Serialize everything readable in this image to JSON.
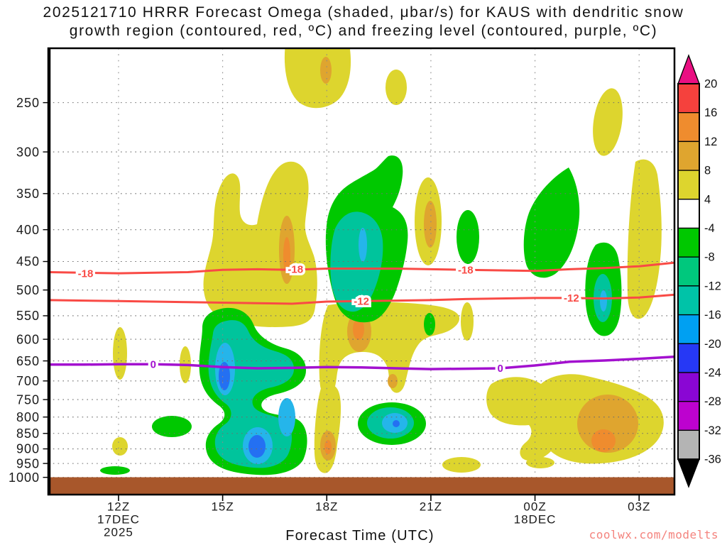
{
  "page": {
    "background": "#ffffff"
  },
  "title": {
    "line1": "2025121710 HRRR Forecast Omega (shaded, μbar/s) for KAUS with dendritic snow",
    "line2": "growth region (contoured, red, ºC) and freezing level (contoured, purple, ºC)"
  },
  "watermark": {
    "text": "coolwx.com/modelts",
    "color": "#f4837d"
  },
  "chart_data": {
    "type": "heatmap",
    "subtype": "time-height filled-contour cross section",
    "title": "2025121710 HRRR Forecast Omega (shaded, μbar/s) for KAUS with dendritic snow growth region (contoured, red, ºC) and freezing level (contoured, purple, ºC)",
    "model_run": "2025121710",
    "station": "KAUS",
    "shaded_variable": "omega (μbar/s)",
    "grid": "dotted",
    "x_axis": {
      "label": "Forecast Time (UTC)",
      "range_hours_after_10Z": [
        0,
        18
      ],
      "ticks": [
        {
          "label": "12Z",
          "t": 2,
          "sub": [
            "17DEC",
            "2025"
          ]
        },
        {
          "label": "15Z",
          "t": 5,
          "sub": []
        },
        {
          "label": "18Z",
          "t": 8,
          "sub": []
        },
        {
          "label": "21Z",
          "t": 11,
          "sub": []
        },
        {
          "label": "00Z",
          "t": 14,
          "sub": [
            "18DEC"
          ]
        },
        {
          "label": "03Z",
          "t": 17,
          "sub": []
        }
      ]
    },
    "y_axis": {
      "units": "hPa",
      "scale": "log",
      "ticks": [
        250,
        300,
        350,
        400,
        450,
        500,
        550,
        600,
        650,
        700,
        750,
        800,
        850,
        900,
        950,
        1000
      ],
      "top_hPa": 205,
      "bottom_hPa": 1065
    },
    "colorbar": {
      "tick_labels": [
        "20",
        "16",
        "12",
        "8",
        "4",
        "-4",
        "-8",
        "-12",
        "-16",
        "-20",
        "-24",
        "-28",
        "-32",
        "-36"
      ],
      "segments": [
        {
          "range": "16..20",
          "color": "#f5413d"
        },
        {
          "range": "12..16",
          "color": "#ef8c2e"
        },
        {
          "range": "8..12",
          "color": "#dfa52f"
        },
        {
          "range": "4..8",
          "color": "#ddd52e"
        },
        {
          "range": "-4..4",
          "color": "#ffffff"
        },
        {
          "range": "-8..-4",
          "color": "#00c800"
        },
        {
          "range": "-12..-8",
          "color": "#00c87d"
        },
        {
          "range": "-16..-12",
          "color": "#00c3a8"
        },
        {
          "range": "-20..-16",
          "color": "#00a0f2"
        },
        {
          "range": "-24..-20",
          "color": "#2638f5"
        },
        {
          "range": "-28..-24",
          "color": "#8a06d4"
        },
        {
          "range": "-32..-28",
          "color": "#bd02cf"
        },
        {
          "range": "-36..-32",
          "color": "#b4b4b4"
        }
      ],
      "over_color": "#ea0f82",
      "under_color": "#000000"
    },
    "contours": [
      {
        "name": "dendritic growth region -18 ºC",
        "value": -18,
        "color": "#f94a45",
        "width": 3,
        "points": [
          [
            0,
            468
          ],
          [
            2,
            470
          ],
          [
            4,
            468
          ],
          [
            5,
            464
          ],
          [
            6,
            463
          ],
          [
            7,
            464
          ],
          [
            8,
            462
          ],
          [
            9,
            462
          ],
          [
            10,
            462
          ],
          [
            11,
            463
          ],
          [
            12,
            464
          ],
          [
            13,
            465
          ],
          [
            14,
            466
          ],
          [
            15,
            463
          ],
          [
            16,
            461
          ],
          [
            17,
            458
          ],
          [
            18,
            452
          ]
        ],
        "labels": [
          {
            "text": "-18",
            "t": 1.05,
            "p": 470
          },
          {
            "text": "-18",
            "t": 7.1,
            "p": 463
          },
          {
            "text": "-18",
            "t": 12.0,
            "p": 464
          }
        ]
      },
      {
        "name": "dendritic growth region -12 ºC",
        "value": -12,
        "color": "#f94a45",
        "width": 3,
        "points": [
          [
            0,
            519
          ],
          [
            2,
            521
          ],
          [
            4,
            523
          ],
          [
            6,
            525
          ],
          [
            7,
            526
          ],
          [
            8,
            522
          ],
          [
            9,
            521
          ],
          [
            10,
            520
          ],
          [
            11,
            519
          ],
          [
            12,
            517
          ],
          [
            13,
            516
          ],
          [
            14,
            515
          ],
          [
            15,
            515
          ],
          [
            16,
            516
          ],
          [
            17,
            514
          ],
          [
            18,
            509
          ]
        ],
        "labels": [
          {
            "text": "-12",
            "t": 9.0,
            "p": 521
          },
          {
            "text": "-12",
            "t": 15.05,
            "p": 515
          }
        ]
      },
      {
        "name": "freezing level 0 ºC",
        "value": 0,
        "color": "#a311cf",
        "width": 3.5,
        "points": [
          [
            0,
            659
          ],
          [
            1,
            659
          ],
          [
            2,
            658
          ],
          [
            3,
            658
          ],
          [
            4,
            660
          ],
          [
            5,
            665
          ],
          [
            6,
            668
          ],
          [
            7,
            667
          ],
          [
            8,
            665
          ],
          [
            9,
            666
          ],
          [
            10,
            668
          ],
          [
            11,
            670
          ],
          [
            12,
            669
          ],
          [
            13,
            668
          ],
          [
            14,
            661
          ],
          [
            15,
            652
          ],
          [
            16,
            649
          ],
          [
            17,
            645
          ],
          [
            18,
            640
          ]
        ],
        "labels": [
          {
            "text": "0",
            "t": 3.0,
            "p": 658
          },
          {
            "text": "0",
            "t": 13.0,
            "p": 668
          }
        ]
      }
    ],
    "shaded_features": [
      {
        "motion": "descent",
        "time_utc": "16Z-18Z",
        "pressure_hPa": "205-265",
        "peak_band_ubar_s": "8 to 12"
      },
      {
        "motion": "descent",
        "time_utc": "14Z-17.5Z",
        "pressure_hPa": "300-485",
        "peak_band_ubar_s": "8 to 12"
      },
      {
        "motion": "ascent",
        "time_utc": "17.5Z-19.5Z",
        "pressure_hPa": "300-525",
        "peak_band_ubar_s": "-12 to -16"
      },
      {
        "motion": "descent",
        "time_utc": "19Z-20Z",
        "pressure_hPa": "330-505",
        "peak_band_ubar_s": "8 to 12"
      },
      {
        "motion": "ascent",
        "time_utc": "14.5Z-17.5Z",
        "pressure_hPa": "520-995",
        "peak_band_ubar_s": "-20 to -24"
      },
      {
        "motion": "descent",
        "time_utc": "18Z-20.5Z",
        "pressure_hPa": "480-720",
        "peak_band_ubar_s": "12 to 16"
      },
      {
        "motion": "ascent",
        "time_utc": "19Z-21Z",
        "pressure_hPa": "760-890",
        "peak_band_ubar_s": "-16 to -20"
      },
      {
        "motion": "descent",
        "time_utc": "22.5Z-03.5Z",
        "pressure_hPa": "545-960",
        "peak_band_ubar_s": "12 to 16"
      },
      {
        "motion": "ascent",
        "time_utc": "01.4Z-02.5Z",
        "pressure_hPa": "423-587",
        "peak_band_ubar_s": "-12 to -16"
      },
      {
        "motion": "ascent",
        "time_utc": "23Z-00Z",
        "pressure_hPa": "280-430",
        "peak_band_ubar_s": "-4 to -8"
      },
      {
        "motion": "ascent",
        "time_utc": "23.7Z-00.3Z",
        "pressure_hPa": "430-470",
        "peak_band_ubar_s": "-4 to -8"
      }
    ],
    "surface": {
      "color": "#a8572b",
      "from_hPa": 1000
    }
  }
}
